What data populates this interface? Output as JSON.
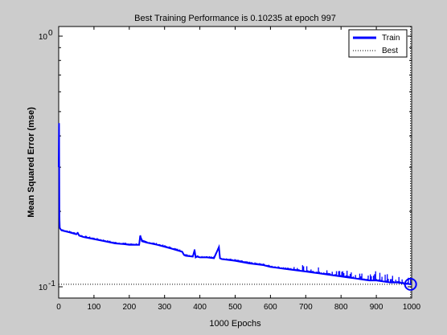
{
  "chart_data": {
    "type": "line",
    "title": "Best Training Performance is 0.10235 at epoch 997",
    "xlabel": "1000 Epochs",
    "ylabel": "Mean Squared Error  (mse)",
    "xlim": [
      0,
      1000
    ],
    "ylim": [
      0.1,
      1
    ],
    "yscale": "log",
    "grid": false,
    "legend_position": "top-right",
    "xticks": [
      0,
      100,
      200,
      300,
      400,
      500,
      600,
      700,
      800,
      900,
      1000
    ],
    "xtick_labels": [
      "0",
      "100",
      "200",
      "300",
      "400",
      "500",
      "600",
      "700",
      "800",
      "900",
      "1000"
    ],
    "ytick_labels": [
      {
        "base": "10",
        "exp": "0",
        "value": 1
      },
      {
        "base": "10",
        "exp": "-1",
        "value": 0.1
      }
    ],
    "series": [
      {
        "name": "Train",
        "color": "#0000ff",
        "style": "solid",
        "x": [
          0,
          1,
          2,
          3,
          5,
          8,
          15,
          30,
          50,
          54,
          58,
          70,
          100,
          130,
          160,
          185,
          200,
          228,
          231,
          236,
          250,
          280,
          320,
          350,
          355,
          360,
          380,
          385,
          388,
          392,
          400,
          420,
          440,
          454,
          457,
          462,
          480,
          500,
          540,
          580,
          600,
          620,
          640,
          660,
          680,
          700,
          720,
          740,
          760,
          780,
          800,
          820,
          840,
          860,
          880,
          900,
          920,
          940,
          960,
          980,
          997,
          1000
        ],
        "y": [
          0.3,
          0.45,
          0.19,
          0.172,
          0.17,
          0.168,
          0.167,
          0.165,
          0.162,
          0.164,
          0.16,
          0.158,
          0.155,
          0.152,
          0.149,
          0.148,
          0.147,
          0.147,
          0.16,
          0.152,
          0.15,
          0.147,
          0.142,
          0.138,
          0.134,
          0.133,
          0.132,
          0.14,
          0.131,
          0.132,
          0.131,
          0.131,
          0.13,
          0.144,
          0.13,
          0.129,
          0.128,
          0.127,
          0.124,
          0.122,
          0.12,
          0.119,
          0.118,
          0.117,
          0.116,
          0.115,
          0.114,
          0.113,
          0.112,
          0.111,
          0.11,
          0.109,
          0.108,
          0.107,
          0.106,
          0.106,
          0.105,
          0.104,
          0.104,
          0.103,
          0.10235,
          0.10235
        ]
      },
      {
        "name": "Best",
        "color": "#000000",
        "style": "dotted",
        "value": 0.10235,
        "epoch": 997
      }
    ],
    "best_marker": {
      "x": 997,
      "y": 0.10235,
      "color": "#0000ff"
    }
  }
}
